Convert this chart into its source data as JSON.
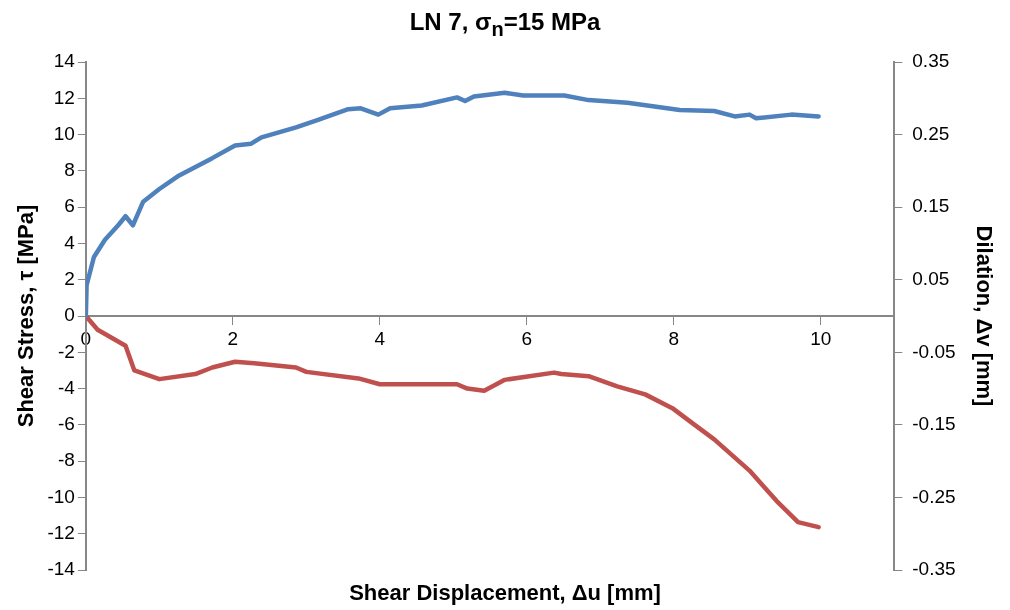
{
  "chart_data": {
    "type": "line",
    "title": "LN 7, σ$_{n}$=15 MPa",
    "xlabel": "Shear Displacement, Δu [mm]",
    "ylabel": "Shear Stress, τ [MPa]",
    "y2label": "Dilation, Δv [mm]",
    "xlim": [
      0,
      11
    ],
    "xticks": [
      0,
      2,
      4,
      6,
      8,
      10
    ],
    "ylim": [
      -14,
      14
    ],
    "yticks": [
      -14,
      -12,
      -10,
      -8,
      -6,
      -4,
      -2,
      0,
      2,
      4,
      6,
      8,
      10,
      12,
      14
    ],
    "y2lim": [
      -0.35,
      0.35
    ],
    "y2ticks": [
      -0.35,
      -0.25,
      -0.15,
      -0.05,
      0.05,
      0.15,
      0.25,
      0.35
    ],
    "grid": false,
    "legend": false,
    "marker": "none",
    "line_style": "solid",
    "series": [
      {
        "color": "#4f81bd",
        "x": [
          0,
          0.01,
          0.11,
          0.26,
          0.44,
          0.54,
          0.64,
          0.78,
          1.0,
          1.25,
          1.72,
          2.03,
          2.25,
          2.39,
          2.86,
          3.15,
          3.57,
          3.74,
          3.98,
          4.14,
          4.57,
          5.05,
          5.16,
          5.28,
          5.7,
          5.95,
          6.37,
          6.51,
          6.84,
          7.37,
          8.08,
          8.55,
          8.83,
          9.03,
          9.12,
          9.6,
          9.97
        ],
        "values": [
          0,
          1.7,
          3.25,
          4.2,
          5.0,
          5.5,
          5.0,
          6.3,
          7.0,
          7.7,
          8.7,
          9.4,
          9.5,
          9.85,
          10.4,
          10.8,
          11.4,
          11.45,
          11.1,
          11.45,
          11.6,
          12.05,
          11.85,
          12.1,
          12.3,
          12.15,
          12.15,
          12.15,
          11.9,
          11.75,
          11.35,
          11.3,
          11.0,
          11.1,
          10.9,
          11.1,
          11.0
        ]
      },
      {
        "color": "#c0504d",
        "axis": "y2",
        "x": [
          0,
          0.16,
          0.54,
          0.66,
          1.0,
          1.49,
          1.72,
          2.03,
          2.29,
          2.86,
          3.0,
          3.71,
          4.0,
          5.05,
          5.19,
          5.42,
          5.7,
          6.37,
          6.47,
          6.84,
          7.23,
          7.61,
          7.98,
          8.27,
          8.55,
          9.03,
          9.4,
          9.69,
          9.97
        ],
        "values": [
          0,
          -0.019,
          -0.041,
          -0.075,
          -0.087,
          -0.08,
          -0.071,
          -0.063,
          -0.065,
          -0.071,
          -0.077,
          -0.086,
          -0.094,
          -0.094,
          -0.1,
          -0.103,
          -0.088,
          -0.078,
          -0.08,
          -0.083,
          -0.097,
          -0.108,
          -0.127,
          -0.149,
          -0.17,
          -0.213,
          -0.255,
          -0.284,
          -0.291
        ]
      }
    ]
  }
}
